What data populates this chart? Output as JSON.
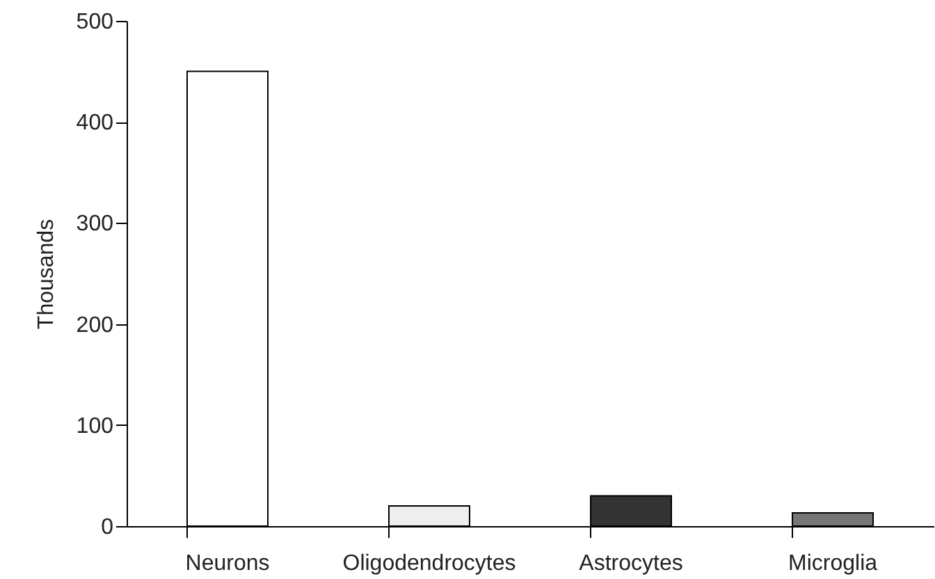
{
  "chart_data": {
    "type": "bar",
    "ylabel": "Thousands",
    "categories": [
      "Neurons",
      "Oligodendrocytes",
      "Astrocytes",
      "Microglia"
    ],
    "values": [
      450,
      20,
      30,
      13
    ],
    "colors": [
      "#ffffff",
      "#eeeeee",
      "#333333",
      "#777777"
    ],
    "ylim": [
      0,
      500
    ],
    "yticks": [
      0,
      100,
      200,
      300,
      400,
      500
    ],
    "grid": false
  }
}
